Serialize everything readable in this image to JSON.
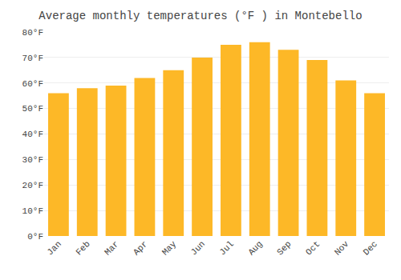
{
  "chart_data": {
    "type": "bar",
    "title": "Average monthly temperatures (°F ) in Montebello",
    "categories": [
      "Jan",
      "Feb",
      "Mar",
      "Apr",
      "May",
      "Jun",
      "Jul",
      "Aug",
      "Sep",
      "Oct",
      "Nov",
      "Dec"
    ],
    "values": [
      56,
      58,
      59,
      62,
      65,
      70,
      75,
      76,
      73,
      69,
      61,
      56
    ],
    "color": "#FDB827",
    "ylim": [
      0,
      80
    ],
    "yticks": [
      {
        "value": 0,
        "label": "0°F"
      },
      {
        "value": 10,
        "label": "10°F"
      },
      {
        "value": 20,
        "label": "20°F"
      },
      {
        "value": 30,
        "label": "30°F"
      },
      {
        "value": 40,
        "label": "40°F"
      },
      {
        "value": 50,
        "label": "50°F"
      },
      {
        "value": 60,
        "label": "60°F"
      },
      {
        "value": 70,
        "label": "70°F"
      },
      {
        "value": 80,
        "label": "80°F"
      }
    ],
    "grid": true
  }
}
